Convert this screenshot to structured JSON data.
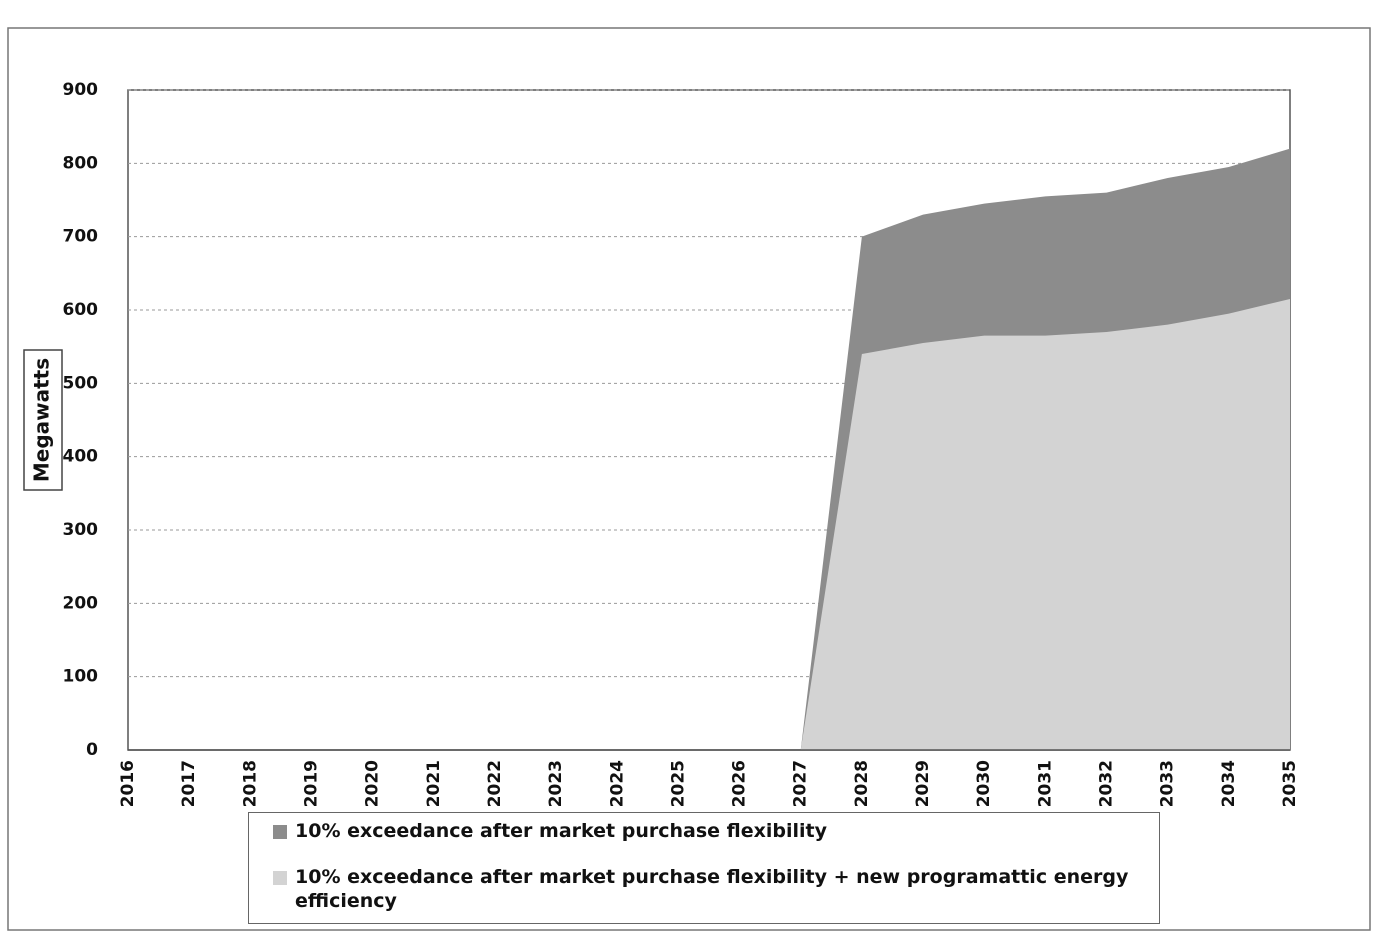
{
  "chart_data": {
    "type": "area",
    "y_label": "Megawatts",
    "categories": [
      "2016",
      "2017",
      "2018",
      "2019",
      "2020",
      "2021",
      "2022",
      "2023",
      "2024",
      "2025",
      "2026",
      "2027",
      "2028",
      "2029",
      "2030",
      "2031",
      "2032",
      "2033",
      "2034",
      "2035"
    ],
    "series": [
      {
        "name": "10% exceedance after market purchase flexibility",
        "color": "#8c8c8c",
        "values": [
          0,
          0,
          0,
          0,
          0,
          0,
          0,
          0,
          0,
          0,
          0,
          0,
          700,
          730,
          745,
          755,
          760,
          780,
          795,
          820
        ]
      },
      {
        "name": "10% exceedance after market purchase flexibility + new programattic energy efficiency",
        "color": "#d3d3d3",
        "values": [
          0,
          0,
          0,
          0,
          0,
          0,
          0,
          0,
          0,
          0,
          0,
          0,
          540,
          555,
          565,
          565,
          570,
          580,
          595,
          615
        ]
      }
    ],
    "ylim": [
      0,
      900
    ],
    "yticks": [
      0,
      100,
      200,
      300,
      400,
      500,
      600,
      700,
      800,
      900
    ],
    "grid": true
  }
}
